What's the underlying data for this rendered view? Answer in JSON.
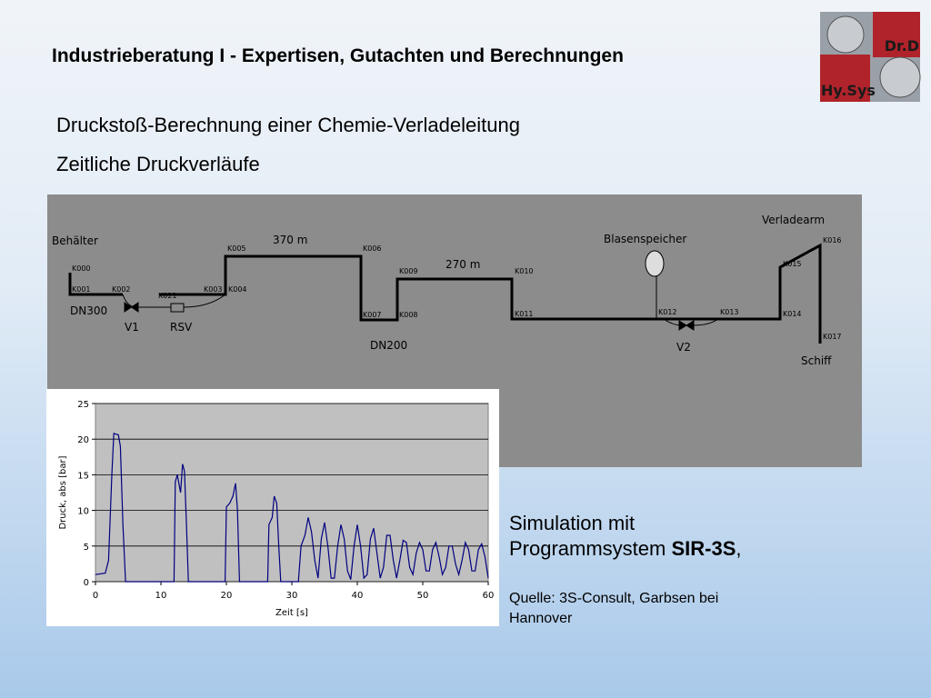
{
  "header": {
    "title": "Industrieberatung I - Expertisen, Gutachten und Berechnungen",
    "subtitle": "Druckstoß-Berechnung einer Chemie-Verladeleitung",
    "subtitle2": "Zeitliche Druckverläufe"
  },
  "logo": {
    "line1": "Dr.D",
    "line2": "Hy.Sys"
  },
  "diagram": {
    "behaelter": "Behälter",
    "verladearm": "Verladearm",
    "len1": "370 m",
    "len2": "270 m",
    "blasenspeicher": "Blasenspeicher",
    "dn300": "DN300",
    "v1": "V1",
    "rsv": "RSV",
    "dn200": "DN200",
    "v2": "V2",
    "schiff": "Schiff",
    "nodes": [
      "K000",
      "K001",
      "K002",
      "K021",
      "K003",
      "K004",
      "K005",
      "K006",
      "K007",
      "K008",
      "K009",
      "K010",
      "K011",
      "K012",
      "K013",
      "K014",
      "K015",
      "K016",
      "K017"
    ]
  },
  "chart_data": {
    "type": "line",
    "xlabel": "Zeit [s]",
    "ylabel": "Druck, abs [bar]",
    "x": [
      0,
      1.5,
      2,
      2.5,
      2.8,
      3.5,
      3.8,
      4.2,
      4.6,
      12,
      12.2,
      12.5,
      13,
      13.3,
      13.6,
      13.9,
      14.2,
      19.8,
      20,
      20.5,
      21,
      21.4,
      21.7,
      22,
      26.3,
      26.5,
      27,
      27.3,
      27.7,
      28,
      28.3,
      31,
      31.4,
      32,
      32.5,
      33,
      33.5,
      34,
      34.5,
      35,
      35.5,
      36,
      36.5,
      37,
      37.5,
      38,
      38.5,
      39,
      39.5,
      40,
      40.5,
      41,
      41.5,
      42,
      42.5,
      43,
      43.5,
      44,
      44.5,
      45,
      45.5,
      46,
      46.5,
      47,
      47.5,
      48,
      48.5,
      49,
      49.5,
      50,
      50.5,
      51,
      51.5,
      52,
      52.5,
      53,
      53.5,
      54,
      54.5,
      55,
      55.5,
      56,
      56.5,
      57,
      57.5,
      58,
      58.5,
      59,
      59.5,
      60
    ],
    "values": [
      1,
      1.2,
      3,
      15,
      20.8,
      20.6,
      19,
      8,
      0,
      0,
      14,
      15,
      12.5,
      16.5,
      15.5,
      8,
      0,
      0,
      10.5,
      11,
      12,
      13.8,
      10,
      0,
      0,
      8,
      9,
      12,
      11,
      5,
      0,
      0,
      5,
      6.5,
      9,
      7,
      3,
      0.5,
      6,
      8.3,
      5,
      0.5,
      0.5,
      5,
      8,
      6,
      1.5,
      0.3,
      5,
      8,
      5,
      0.5,
      1,
      6,
      7.5,
      4,
      0.5,
      2,
      6.5,
      6.5,
      3,
      0.5,
      3,
      5.8,
      5.5,
      2,
      1,
      4,
      5.5,
      4.5,
      1.5,
      1.5,
      4.5,
      5.5,
      3.5,
      1,
      2,
      5,
      5,
      2.5,
      1,
      3,
      5.5,
      4.5,
      1.5,
      1.5,
      4.5,
      5.3,
      3.5,
      0.5
    ],
    "color": "#000080",
    "xlim": [
      0,
      60
    ],
    "ylim": [
      0,
      25
    ],
    "xticks": [
      0,
      10,
      20,
      30,
      40,
      50,
      60
    ],
    "yticks": [
      0,
      5,
      10,
      15,
      20,
      25
    ],
    "grid": true
  },
  "side": {
    "line1": "Simulation mit",
    "line2a": "Programmsystem ",
    "line2b": "SIR-3S",
    "line2c": ",",
    "source": "Quelle: 3S-Consult, Garbsen bei Hannover"
  }
}
